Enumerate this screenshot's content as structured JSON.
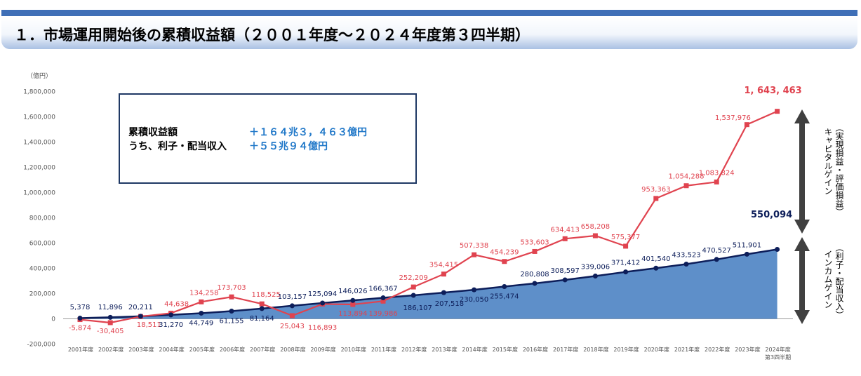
{
  "header": {
    "title": "１．市場運用開始後の累積収益額（２００１年度～２０２４年度第３四半期）"
  },
  "summary_box": {
    "row1_label": "累積収益額",
    "row1_value": "＋１６４兆３，４６３億円",
    "row2_label": "うち、利子・配当収入",
    "row2_value": "＋５５兆９４億円"
  },
  "side_labels": {
    "capital_gain": "キャピタルゲイン",
    "capital_gain_sub": "（実現損益・評価損益）",
    "income_gain": "インカムゲイン",
    "income_gain_sub": "（利子・配当収入）"
  },
  "chart_data": {
    "type": "line",
    "yunit": "（億円）",
    "ylim": [
      -200000,
      1800000
    ],
    "yticks": [
      -200000,
      0,
      200000,
      400000,
      600000,
      800000,
      1000000,
      1200000,
      1400000,
      1600000,
      1800000
    ],
    "ytick_labels": [
      "-200,000",
      "0",
      "200,000",
      "400,000",
      "600,000",
      "800,000",
      "1,000,000",
      "1,200,000",
      "1,400,000",
      "1,600,000",
      "1,800,000"
    ],
    "categories": [
      "2001年度",
      "2002年度",
      "2003年度",
      "2004年度",
      "2005年度",
      "2006年度",
      "2007年度",
      "2008年度",
      "2009年度",
      "2010年度",
      "2011年度",
      "2012年度",
      "2013年度",
      "2014年度",
      "2015年度",
      "2016年度",
      "2017年度",
      "2018年度",
      "2019年度",
      "2020年度",
      "2021年度",
      "2022年度",
      "2023年度",
      "2024年度"
    ],
    "last_category_sub": "第3四半期",
    "series": [
      {
        "key": "cumulative",
        "color": "#e0434f",
        "marker": "square",
        "values": [
          -5874,
          -30405,
          18511,
          44638,
          134258,
          173703,
          118525,
          25043,
          116893,
          113894,
          139986,
          252209,
          354415,
          507338,
          454239,
          533603,
          634413,
          658208,
          575377,
          953363,
          1054288,
          1083824,
          1537976,
          1643463
        ],
        "labels": [
          "-5,874",
          "-30,405",
          "18,511",
          "44,638",
          "134,258",
          "173,703",
          "118,525",
          "25,043",
          "116,893",
          "113,894",
          "139,986",
          "252,209",
          "354,415",
          "507,338",
          "454,239",
          "533,603",
          "634,413",
          "658,208",
          "575,377",
          "953,363",
          "1,054,288",
          "1,083,824",
          "1,537,976",
          "1, 643, 463"
        ]
      },
      {
        "key": "income",
        "color": "#0d1e5a",
        "fill": "#5e8fc9",
        "marker": "circle",
        "values": [
          5378,
          11896,
          20211,
          31270,
          44749,
          61155,
          81164,
          103157,
          125094,
          146026,
          166367,
          186107,
          207518,
          230050,
          255474,
          280808,
          308597,
          339006,
          371412,
          401540,
          433523,
          470527,
          511901,
          550094
        ],
        "labels": [
          "5,378",
          "11,896",
          "20,211",
          "31,270",
          "44,749",
          "61,155",
          "81,164",
          "103,157",
          "125,094",
          "146,026",
          "166,367",
          "186,107",
          "207,518",
          "230,050",
          "255,474",
          "280,808",
          "308,597",
          "339,006",
          "371,412",
          "401,540",
          "433,523",
          "470,527",
          "511,901",
          "550,094"
        ]
      }
    ]
  }
}
